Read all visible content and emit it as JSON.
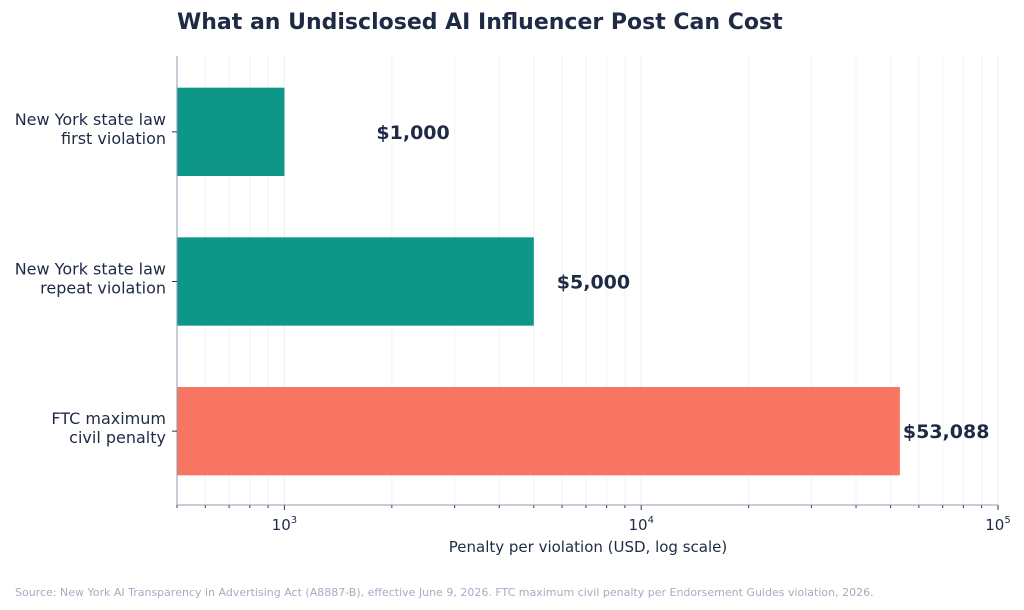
{
  "chart_data": {
    "type": "bar",
    "orientation": "horizontal",
    "title": "What an Undisclosed AI Influencer Post Can Cost",
    "xlabel": "Penalty per violation (USD, log scale)",
    "ylabel": "",
    "xscale": "log",
    "xlim": [
      500,
      100000
    ],
    "xticks": [
      {
        "base": "10",
        "exp": "3",
        "value": 1000
      },
      {
        "base": "10",
        "exp": "4",
        "value": 10000
      },
      {
        "base": "10",
        "exp": "5",
        "value": 100000
      }
    ],
    "grid": "vertical, including minor log gridlines",
    "categories": [
      [
        "New York state law",
        "first violation"
      ],
      [
        "New York state law",
        "repeat violation"
      ],
      [
        "FTC maximum",
        "civil penalty"
      ]
    ],
    "values": [
      1000,
      5000,
      53088
    ],
    "value_labels": [
      "$1,000",
      "$5,000",
      "$53,088"
    ],
    "colors": [
      "#0e9688",
      "#0e9688",
      "#f87463"
    ],
    "source": "Source: New York AI Transparency in Advertising Act (A8887-B), effective June 9, 2026. FTC maximum civil penalty per Endorsement Guides violation, 2026."
  }
}
